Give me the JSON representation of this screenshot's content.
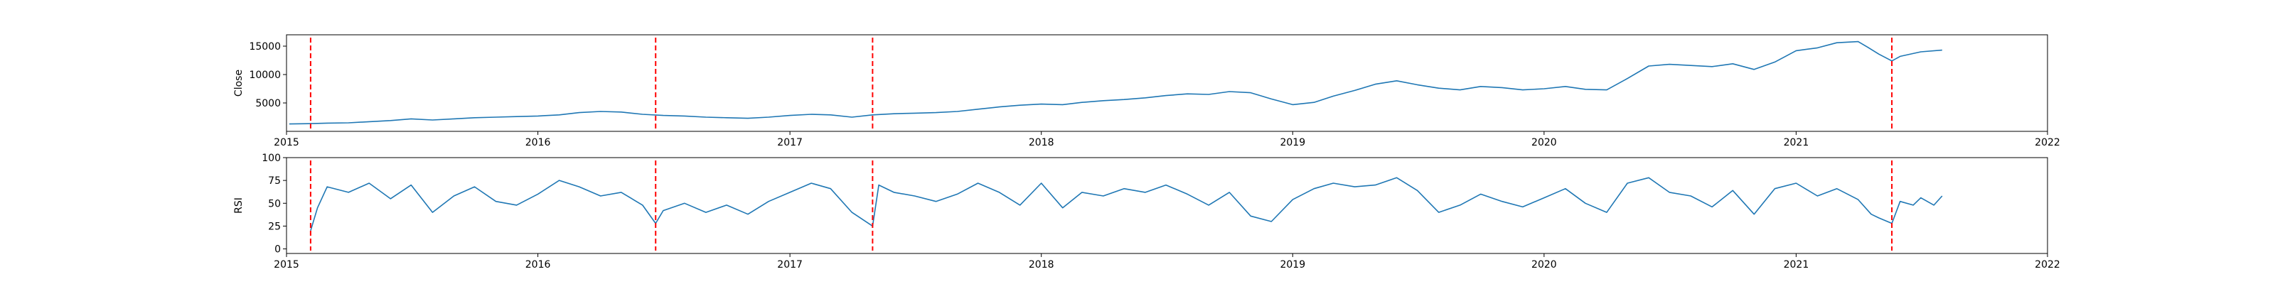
{
  "chart_data": [
    {
      "type": "line",
      "ylabel": "Close",
      "xlim": [
        "2015-01-01",
        "2022-01-01"
      ],
      "ylim": [
        0,
        17000
      ],
      "x_ticks": [
        "2015",
        "2016",
        "2017",
        "2018",
        "2019",
        "2020",
        "2021",
        "2022"
      ],
      "y_ticks": [
        5000,
        10000,
        15000
      ],
      "series": [
        {
          "color": "#1f77b4",
          "points": [
            [
              "2015-01-05",
              1300
            ],
            [
              "2015-02-01",
              1350
            ],
            [
              "2015-03-01",
              1450
            ],
            [
              "2015-04-01",
              1500
            ],
            [
              "2015-05-01",
              1700
            ],
            [
              "2015-06-01",
              1900
            ],
            [
              "2015-07-01",
              2200
            ],
            [
              "2015-08-01",
              2000
            ],
            [
              "2015-09-01",
              2200
            ],
            [
              "2015-10-01",
              2400
            ],
            [
              "2015-11-01",
              2500
            ],
            [
              "2015-12-01",
              2600
            ],
            [
              "2016-01-01",
              2700
            ],
            [
              "2016-02-01",
              2900
            ],
            [
              "2016-03-01",
              3300
            ],
            [
              "2016-04-01",
              3500
            ],
            [
              "2016-05-01",
              3400
            ],
            [
              "2016-06-01",
              3000
            ],
            [
              "2016-07-01",
              2800
            ],
            [
              "2016-08-01",
              2700
            ],
            [
              "2016-09-01",
              2500
            ],
            [
              "2016-10-01",
              2400
            ],
            [
              "2016-11-01",
              2300
            ],
            [
              "2016-12-01",
              2500
            ],
            [
              "2017-01-01",
              2800
            ],
            [
              "2017-02-01",
              3000
            ],
            [
              "2017-03-01",
              2900
            ],
            [
              "2017-04-01",
              2500
            ],
            [
              "2017-05-01",
              2900
            ],
            [
              "2017-06-01",
              3100
            ],
            [
              "2017-07-01",
              3200
            ],
            [
              "2017-08-01",
              3300
            ],
            [
              "2017-09-01",
              3500
            ],
            [
              "2017-10-01",
              3900
            ],
            [
              "2017-11-01",
              4300
            ],
            [
              "2017-12-01",
              4600
            ],
            [
              "2018-01-01",
              4800
            ],
            [
              "2018-02-01",
              4700
            ],
            [
              "2018-03-01",
              5100
            ],
            [
              "2018-04-01",
              5400
            ],
            [
              "2018-05-01",
              5600
            ],
            [
              "2018-06-01",
              5900
            ],
            [
              "2018-07-01",
              6300
            ],
            [
              "2018-08-01",
              6600
            ],
            [
              "2018-09-01",
              6500
            ],
            [
              "2018-10-01",
              7000
            ],
            [
              "2018-11-01",
              6800
            ],
            [
              "2018-12-01",
              5700
            ],
            [
              "2019-01-01",
              4700
            ],
            [
              "2019-02-01",
              5100
            ],
            [
              "2019-03-01",
              6200
            ],
            [
              "2019-04-01",
              7200
            ],
            [
              "2019-05-01",
              8300
            ],
            [
              "2019-06-01",
              8900
            ],
            [
              "2019-07-01",
              8200
            ],
            [
              "2019-08-01",
              7600
            ],
            [
              "2019-09-01",
              7300
            ],
            [
              "2019-10-01",
              7900
            ],
            [
              "2019-11-01",
              7700
            ],
            [
              "2019-12-01",
              7300
            ],
            [
              "2020-01-01",
              7500
            ],
            [
              "2020-02-01",
              7900
            ],
            [
              "2020-03-01",
              7400
            ],
            [
              "2020-04-01",
              7300
            ],
            [
              "2020-05-01",
              9300
            ],
            [
              "2020-06-01",
              11500
            ],
            [
              "2020-07-01",
              11800
            ],
            [
              "2020-08-01",
              11600
            ],
            [
              "2020-09-01",
              11400
            ],
            [
              "2020-10-01",
              11900
            ],
            [
              "2020-11-01",
              10900
            ],
            [
              "2020-12-01",
              12200
            ],
            [
              "2021-01-01",
              14200
            ],
            [
              "2021-02-01",
              14700
            ],
            [
              "2021-03-01",
              15600
            ],
            [
              "2021-04-01",
              15800
            ],
            [
              "2021-04-15",
              14800
            ],
            [
              "2021-05-01",
              13600
            ],
            [
              "2021-05-20",
              12400
            ],
            [
              "2021-06-01",
              13200
            ],
            [
              "2021-07-01",
              14000
            ],
            [
              "2021-08-01",
              14300
            ]
          ]
        }
      ],
      "vlines": [
        "2015-02-05",
        "2016-06-20",
        "2017-05-01",
        "2021-05-20"
      ],
      "vline_color": "#ff0000",
      "grid": false
    },
    {
      "type": "line",
      "ylabel": "RSI",
      "xlim": [
        "2015-01-01",
        "2022-01-01"
      ],
      "ylim": [
        -5,
        100
      ],
      "x_ticks": [
        "2015",
        "2016",
        "2017",
        "2018",
        "2019",
        "2020",
        "2021",
        "2022"
      ],
      "y_ticks": [
        0,
        25,
        50,
        75,
        100
      ],
      "series": [
        {
          "color": "#1f77b4",
          "points": [
            [
              "2015-02-05",
              20
            ],
            [
              "2015-02-15",
              45
            ],
            [
              "2015-03-01",
              68
            ],
            [
              "2015-04-01",
              62
            ],
            [
              "2015-05-01",
              72
            ],
            [
              "2015-06-01",
              55
            ],
            [
              "2015-07-01",
              70
            ],
            [
              "2015-08-01",
              40
            ],
            [
              "2015-09-01",
              58
            ],
            [
              "2015-10-01",
              68
            ],
            [
              "2015-11-01",
              52
            ],
            [
              "2015-12-01",
              48
            ],
            [
              "2016-01-01",
              60
            ],
            [
              "2016-02-01",
              75
            ],
            [
              "2016-03-01",
              68
            ],
            [
              "2016-04-01",
              58
            ],
            [
              "2016-05-01",
              62
            ],
            [
              "2016-06-01",
              48
            ],
            [
              "2016-06-20",
              28
            ],
            [
              "2016-07-01",
              42
            ],
            [
              "2016-08-01",
              50
            ],
            [
              "2016-09-01",
              40
            ],
            [
              "2016-10-01",
              48
            ],
            [
              "2016-11-01",
              38
            ],
            [
              "2016-12-01",
              52
            ],
            [
              "2017-01-01",
              62
            ],
            [
              "2017-02-01",
              72
            ],
            [
              "2017-03-01",
              66
            ],
            [
              "2017-04-01",
              40
            ],
            [
              "2017-05-01",
              25
            ],
            [
              "2017-05-10",
              70
            ],
            [
              "2017-06-01",
              62
            ],
            [
              "2017-07-01",
              58
            ],
            [
              "2017-08-01",
              52
            ],
            [
              "2017-09-01",
              60
            ],
            [
              "2017-10-01",
              72
            ],
            [
              "2017-11-01",
              62
            ],
            [
              "2017-12-01",
              48
            ],
            [
              "2018-01-01",
              72
            ],
            [
              "2018-02-01",
              45
            ],
            [
              "2018-03-01",
              62
            ],
            [
              "2018-04-01",
              58
            ],
            [
              "2018-05-01",
              66
            ],
            [
              "2018-06-01",
              62
            ],
            [
              "2018-07-01",
              70
            ],
            [
              "2018-08-01",
              60
            ],
            [
              "2018-09-01",
              48
            ],
            [
              "2018-10-01",
              62
            ],
            [
              "2018-11-01",
              36
            ],
            [
              "2018-12-01",
              30
            ],
            [
              "2019-01-01",
              54
            ],
            [
              "2019-02-01",
              66
            ],
            [
              "2019-03-01",
              72
            ],
            [
              "2019-04-01",
              68
            ],
            [
              "2019-05-01",
              70
            ],
            [
              "2019-06-01",
              78
            ],
            [
              "2019-07-01",
              64
            ],
            [
              "2019-08-01",
              40
            ],
            [
              "2019-09-01",
              48
            ],
            [
              "2019-10-01",
              60
            ],
            [
              "2019-11-01",
              52
            ],
            [
              "2019-12-01",
              46
            ],
            [
              "2020-01-01",
              56
            ],
            [
              "2020-02-01",
              66
            ],
            [
              "2020-03-01",
              50
            ],
            [
              "2020-04-01",
              40
            ],
            [
              "2020-05-01",
              72
            ],
            [
              "2020-06-01",
              78
            ],
            [
              "2020-07-01",
              62
            ],
            [
              "2020-08-01",
              58
            ],
            [
              "2020-09-01",
              46
            ],
            [
              "2020-10-01",
              64
            ],
            [
              "2020-11-01",
              38
            ],
            [
              "2020-12-01",
              66
            ],
            [
              "2021-01-01",
              72
            ],
            [
              "2021-02-01",
              58
            ],
            [
              "2021-03-01",
              66
            ],
            [
              "2021-04-01",
              54
            ],
            [
              "2021-04-20",
              38
            ],
            [
              "2021-05-01",
              34
            ],
            [
              "2021-05-20",
              28
            ],
            [
              "2021-06-01",
              52
            ],
            [
              "2021-06-20",
              48
            ],
            [
              "2021-07-01",
              56
            ],
            [
              "2021-07-20",
              48
            ],
            [
              "2021-08-01",
              58
            ]
          ]
        }
      ],
      "vlines": [
        "2015-02-05",
        "2016-06-20",
        "2017-05-01",
        "2021-05-20"
      ],
      "vline_color": "#ff0000",
      "grid": false
    }
  ]
}
